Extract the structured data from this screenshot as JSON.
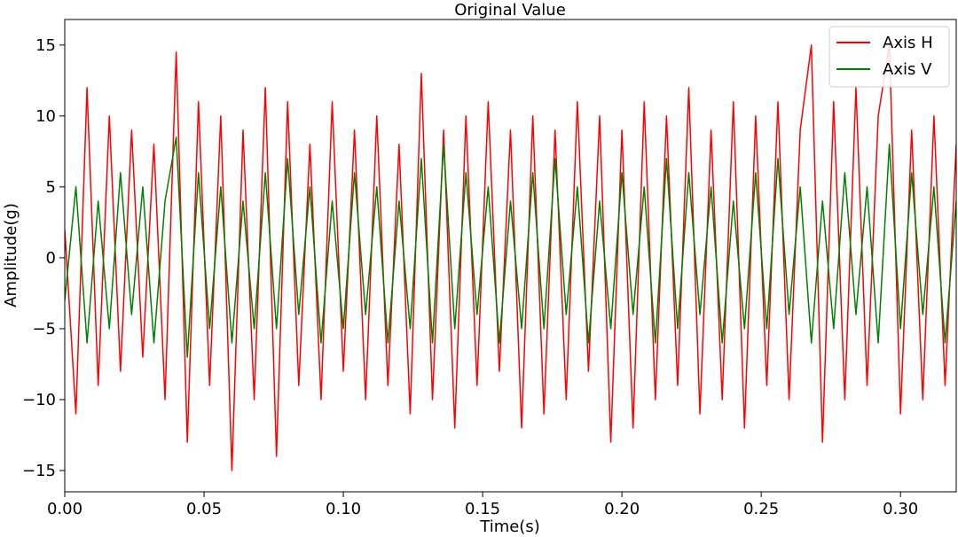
{
  "chart_data": {
    "type": "line",
    "title": "Original Value",
    "xlabel": "Time(s)",
    "ylabel": "Amplitude(g)",
    "x": [
      0,
      0.004,
      0.008,
      0.012,
      0.016,
      0.02,
      0.024,
      0.028,
      0.032,
      0.036,
      0.04,
      0.044,
      0.048,
      0.052,
      0.056,
      0.06,
      0.064,
      0.068,
      0.072,
      0.076,
      0.08,
      0.084,
      0.088,
      0.092,
      0.096,
      0.1,
      0.104,
      0.108,
      0.112,
      0.116,
      0.12,
      0.124,
      0.128,
      0.132,
      0.136,
      0.14,
      0.144,
      0.148,
      0.152,
      0.156,
      0.16,
      0.164,
      0.168,
      0.172,
      0.176,
      0.18,
      0.184,
      0.188,
      0.192,
      0.196,
      0.2,
      0.204,
      0.208,
      0.212,
      0.216,
      0.22,
      0.224,
      0.228,
      0.232,
      0.236,
      0.24,
      0.244,
      0.248,
      0.252,
      0.256,
      0.26,
      0.264,
      0.268,
      0.272,
      0.276,
      0.28,
      0.284,
      0.288,
      0.292,
      0.296,
      0.3,
      0.304,
      0.308,
      0.312,
      0.316,
      0.32
    ],
    "series": [
      {
        "name": "Axis H",
        "color": "#ff0000",
        "values": [
          2,
          -11,
          12,
          -9,
          10,
          -8,
          9,
          -7,
          8,
          -10,
          14.5,
          -13,
          11,
          -9,
          10,
          -15,
          9,
          -10,
          12,
          -14,
          11,
          -9,
          8,
          -10,
          11,
          -8,
          9,
          -10,
          10,
          -9,
          8,
          -11,
          13,
          -10,
          9,
          -12,
          10,
          -9,
          11,
          -8,
          9,
          -12,
          10,
          -11,
          9,
          -10,
          11,
          -8,
          10,
          -13,
          9,
          -12,
          11,
          -10,
          10,
          -9,
          12,
          -11,
          9,
          -10,
          11,
          -12,
          10,
          -9,
          11,
          -10,
          9,
          15,
          -13,
          11,
          -10,
          12,
          -9,
          10,
          15,
          -11,
          9,
          -10,
          10,
          -9,
          8
        ]
      },
      {
        "name": "Axis V",
        "color": "#008000",
        "values": [
          -3,
          5,
          -6,
          4,
          -5,
          6,
          -4,
          5,
          -6,
          4,
          8.5,
          -7,
          6,
          -5,
          5,
          -6,
          4,
          -5,
          6,
          -5,
          7,
          -4,
          5,
          -6,
          4,
          -5,
          6,
          -4,
          5,
          -6,
          4,
          -5,
          7,
          -6,
          8,
          -5,
          6,
          -4,
          5,
          -6,
          4,
          -5,
          6,
          -5,
          7,
          -4,
          5,
          -6,
          4,
          -5,
          6,
          -4,
          5,
          -6,
          7,
          -5,
          6,
          -4,
          5,
          -6,
          4,
          -5,
          6,
          -5,
          7,
          -4,
          5,
          -6,
          4,
          -5,
          6,
          -4,
          5,
          -6,
          8,
          -5,
          6,
          -4,
          5,
          -6,
          4
        ]
      }
    ],
    "xlim": [
      0,
      0.32
    ],
    "xticks": [
      {
        "value": 0,
        "label": "0.00"
      },
      0.05,
      {
        "value": 0.1,
        "label": "0.10"
      },
      0.15,
      {
        "value": 0.2,
        "label": "0.20"
      },
      0.25,
      {
        "value": 0.3,
        "label": "0.30"
      }
    ],
    "ylim": [
      -16.5,
      16.8
    ],
    "yticks": [
      {
        "value": -15,
        "label": "−15"
      },
      {
        "value": -10,
        "label": "−10"
      },
      {
        "value": -5,
        "label": "−5"
      },
      0,
      5,
      10,
      15
    ],
    "grid": false,
    "legend": "upper right"
  }
}
